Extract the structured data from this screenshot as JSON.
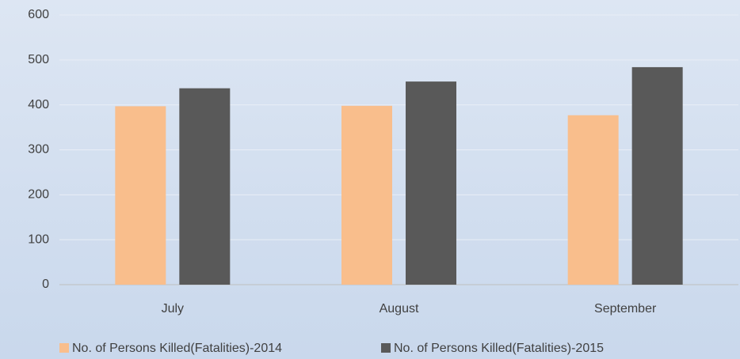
{
  "chart_data": {
    "type": "bar",
    "categories": [
      "July",
      "August",
      "September"
    ],
    "series": [
      {
        "name": "No. of Persons Killed(Fatalities)-2014",
        "color": "#f9be8c",
        "values": [
          397,
          398,
          377
        ]
      },
      {
        "name": "No. of Persons Killed(Fatalities)-2015",
        "color": "#595959",
        "values": [
          437,
          452,
          484
        ]
      }
    ],
    "ylim": [
      0,
      600
    ],
    "yticks": [
      0,
      100,
      200,
      300,
      400,
      500,
      600
    ],
    "grid": true,
    "legend": "bottom"
  }
}
